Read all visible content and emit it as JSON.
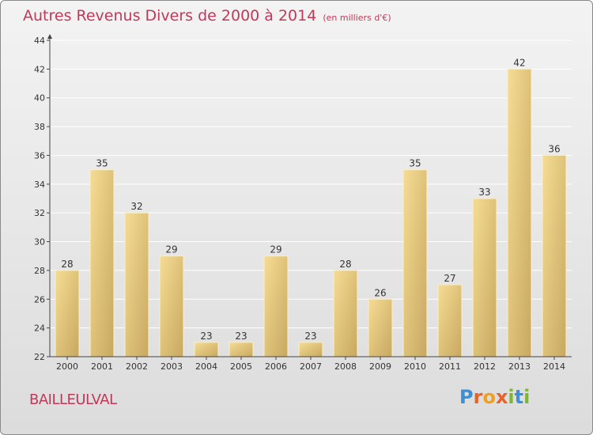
{
  "header": {
    "title": "Autres Revenus Divers de 2000 à 2014",
    "subtitle": "(en milliers d'€)"
  },
  "footer": {
    "commune": "BAILLEULVAL",
    "brand": "Proxiti"
  },
  "colors": {
    "title": "#c0395a",
    "bar_light": "#f5dc94",
    "bar_dark": "#c8a860",
    "axis": "#444444",
    "grid": "#ffffff"
  },
  "chart_data": {
    "type": "bar",
    "title": "Autres Revenus Divers de 2000 à 2014",
    "subtitle": "(en milliers d'€)",
    "xlabel": "",
    "ylabel": "",
    "categories": [
      "2000",
      "2001",
      "2002",
      "2003",
      "2004",
      "2005",
      "2006",
      "2007",
      "2008",
      "2009",
      "2010",
      "2011",
      "2012",
      "2013",
      "2014"
    ],
    "values": [
      28,
      35,
      32,
      29,
      23,
      23,
      29,
      23,
      28,
      26,
      35,
      27,
      33,
      42,
      36
    ],
    "ylim": [
      22,
      44
    ],
    "yticks": [
      22,
      24,
      26,
      28,
      30,
      32,
      34,
      36,
      38,
      40,
      42,
      44
    ],
    "grid": true,
    "data_labels": true
  }
}
